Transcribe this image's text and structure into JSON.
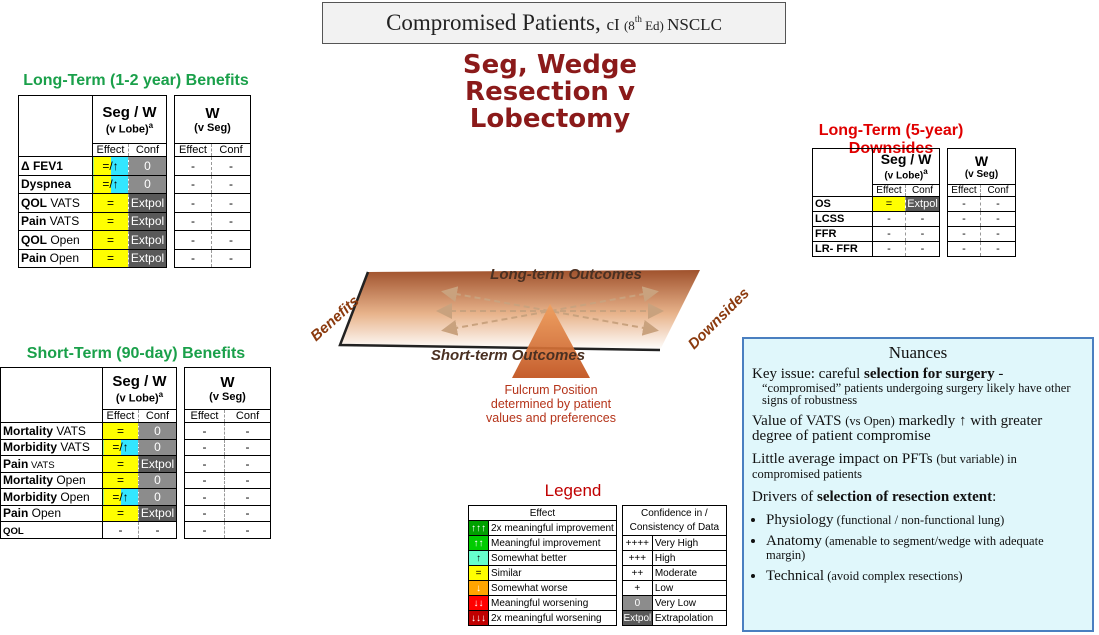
{
  "header": {
    "title_runs": [
      {
        "text": "Compromised Patients, ",
        "style": "large"
      },
      {
        "text": "cI ",
        "style": "medium"
      },
      {
        "text": "(8",
        "style": "small"
      },
      {
        "text": "th",
        "style": "sup"
      },
      {
        "text": " Ed) ",
        "style": "small"
      },
      {
        "text": "NSCLC",
        "style": "medium"
      }
    ]
  },
  "center_title": [
    "Seg, Wedge",
    "Resection v",
    "Lobectomy"
  ],
  "long_term_benefits": {
    "title": "Long-Term (1-2 year) Benefits",
    "groups": [
      {
        "label": "Seg / W",
        "sub": "(v Lobe)",
        "sup": "a"
      },
      {
        "label": "W",
        "sub": "(v Seg)"
      }
    ],
    "columns": [
      "Effect",
      "Conf",
      "Effect",
      "Conf"
    ],
    "rows": [
      {
        "label": [
          {
            "text": "Δ FEV1",
            "style": "bold"
          }
        ],
        "cells": [
          {
            "text": "=/↑",
            "bg": [
              "#ffff00",
              "#33e6ff"
            ]
          },
          {
            "text": "0",
            "bg": "#8c8c8c",
            "color": "#ffffff"
          },
          {
            "text": "-"
          },
          {
            "text": "-"
          }
        ]
      },
      {
        "label": [
          {
            "text": "Dyspnea",
            "style": "bold"
          }
        ],
        "cells": [
          {
            "text": "=/↑",
            "bg": [
              "#ffff00",
              "#33e6ff"
            ]
          },
          {
            "text": "0",
            "bg": "#8c8c8c",
            "color": "#ffffff"
          },
          {
            "text": "-"
          },
          {
            "text": "-"
          }
        ]
      },
      {
        "label": [
          {
            "text": "QOL",
            "style": "bold"
          },
          {
            "text": " VATS",
            "style": "normal"
          }
        ],
        "cells": [
          {
            "text": "=",
            "bg": "#ffff00"
          },
          {
            "text": "Extpol",
            "bg": "#595959",
            "color": "#ffffff"
          },
          {
            "text": "-"
          },
          {
            "text": "-"
          }
        ]
      },
      {
        "label": [
          {
            "text": "Pain",
            "style": "bold"
          },
          {
            "text": " VATS",
            "style": "normal"
          }
        ],
        "cells": [
          {
            "text": "=",
            "bg": "#ffff00"
          },
          {
            "text": "Extpol",
            "bg": "#595959",
            "color": "#ffffff"
          },
          {
            "text": "-"
          },
          {
            "text": "-"
          }
        ]
      },
      {
        "label": [
          {
            "text": "QOL",
            "style": "bold"
          },
          {
            "text": " Open",
            "style": "normal"
          }
        ],
        "cells": [
          {
            "text": "=",
            "bg": "#ffff00"
          },
          {
            "text": "Extpol",
            "bg": "#595959",
            "color": "#ffffff"
          },
          {
            "text": "-"
          },
          {
            "text": "-"
          }
        ]
      },
      {
        "label": [
          {
            "text": "Pain",
            "style": "bold"
          },
          {
            "text": " Open",
            "style": "normal"
          }
        ],
        "cells": [
          {
            "text": "=",
            "bg": "#ffff00"
          },
          {
            "text": "Extpol",
            "bg": "#595959",
            "color": "#ffffff"
          },
          {
            "text": "-"
          },
          {
            "text": "-"
          }
        ]
      }
    ]
  },
  "short_term_benefits": {
    "title": "Short-Term (90-day) Benefits",
    "groups": [
      {
        "label": "Seg / W",
        "sub": "(v Lobe)",
        "sup": "a"
      },
      {
        "label": "W",
        "sub": "(v Seg)"
      }
    ],
    "columns": [
      "Effect",
      "Conf",
      "Effect",
      "Conf"
    ],
    "rows": [
      {
        "label": [
          {
            "text": "Mortality",
            "style": "bold"
          },
          {
            "text": " VATS",
            "style": "normal"
          }
        ],
        "cells": [
          {
            "text": "=",
            "bg": "#ffff00"
          },
          {
            "text": "0",
            "bg": "#8c8c8c",
            "color": "#ffffff"
          },
          {
            "text": "-"
          },
          {
            "text": "-"
          }
        ]
      },
      {
        "label": [
          {
            "text": "Morbidity",
            "style": "bold"
          },
          {
            "text": " VATS",
            "style": "normal"
          }
        ],
        "cells": [
          {
            "text": "=/↑",
            "bg": [
              "#ffff00",
              "#33e6ff"
            ]
          },
          {
            "text": "0",
            "bg": "#8c8c8c",
            "color": "#ffffff"
          },
          {
            "text": "-"
          },
          {
            "text": "-"
          }
        ]
      },
      {
        "label": [
          {
            "text": "Pain",
            "style": "bold"
          },
          {
            "text": " VATS",
            "style": "small"
          }
        ],
        "cells": [
          {
            "text": "=",
            "bg": "#ffff00"
          },
          {
            "text": "Extpol",
            "bg": "#595959",
            "color": "#ffffff"
          },
          {
            "text": "-"
          },
          {
            "text": "-"
          }
        ]
      },
      {
        "label": [
          {
            "text": "Mortality",
            "style": "bold"
          },
          {
            "text": " Open",
            "style": "normal"
          }
        ],
        "cells": [
          {
            "text": "=",
            "bg": "#ffff00"
          },
          {
            "text": "0",
            "bg": "#8c8c8c",
            "color": "#ffffff"
          },
          {
            "text": "-"
          },
          {
            "text": "-"
          }
        ]
      },
      {
        "label": [
          {
            "text": "Morbidity",
            "style": "bold"
          },
          {
            "text": " Open",
            "style": "normal"
          }
        ],
        "cells": [
          {
            "text": "=/↑",
            "bg": [
              "#ffff00",
              "#33e6ff"
            ]
          },
          {
            "text": "0",
            "bg": "#8c8c8c",
            "color": "#ffffff"
          },
          {
            "text": "-"
          },
          {
            "text": "-"
          }
        ]
      },
      {
        "label": [
          {
            "text": "Pain",
            "style": "bold"
          },
          {
            "text": " Open",
            "style": "normal"
          }
        ],
        "cells": [
          {
            "text": "=",
            "bg": "#ffff00"
          },
          {
            "text": "Extpol",
            "bg": "#595959",
            "color": "#ffffff"
          },
          {
            "text": "-"
          },
          {
            "text": "-"
          }
        ]
      },
      {
        "label": [
          {
            "text": "QOL",
            "style": "boldsmall"
          }
        ],
        "cells": [
          {
            "text": "-"
          },
          {
            "text": "-"
          },
          {
            "text": "-"
          },
          {
            "text": "-"
          }
        ]
      }
    ]
  },
  "long_term_downsides": {
    "title": "Long-Term (5-year) Downsides",
    "groups": [
      {
        "label": "Seg / W",
        "sub": "(v Lobe)",
        "sup": "a"
      },
      {
        "label": "W",
        "sub": "(v Seg)"
      }
    ],
    "columns": [
      "Effect",
      "Conf",
      "Effect",
      "Conf"
    ],
    "rows": [
      {
        "label": [
          {
            "text": "OS",
            "style": "bold"
          }
        ],
        "cells": [
          {
            "text": "=",
            "bg": "#ffff00"
          },
          {
            "text": "Extpol",
            "bg": "#595959",
            "color": "#ffffff"
          },
          {
            "text": "-"
          },
          {
            "text": "-"
          }
        ]
      },
      {
        "label": [
          {
            "text": "LCSS",
            "style": "bold"
          }
        ],
        "cells": [
          {
            "text": "-"
          },
          {
            "text": "-"
          },
          {
            "text": "-"
          },
          {
            "text": "-"
          }
        ]
      },
      {
        "label": [
          {
            "text": "FFR",
            "style": "bold"
          }
        ],
        "cells": [
          {
            "text": "-"
          },
          {
            "text": "-"
          },
          {
            "text": "-"
          },
          {
            "text": "-"
          }
        ]
      },
      {
        "label": [
          {
            "text": "LR- FFR",
            "style": "bold"
          }
        ],
        "cells": [
          {
            "text": "-"
          },
          {
            "text": "-"
          },
          {
            "text": "-"
          },
          {
            "text": "-"
          }
        ]
      }
    ]
  },
  "diagram": {
    "top_label": "Long-term Outcomes",
    "bottom_label": "Short-term Outcomes",
    "left_label": "Benefits",
    "right_label": "Downsides",
    "fulcrum_text": [
      "Fulcrum Position",
      "determined by patient",
      "values and preferences"
    ]
  },
  "legend": {
    "title": "Legend",
    "effect": {
      "header": "Effect",
      "rows": [
        {
          "symbol": "↑↑↑",
          "label": "2x meaningful improvement",
          "bg": "#00a000",
          "color": "#ffffff"
        },
        {
          "symbol": "↑↑",
          "label": "Meaningful improvement",
          "bg": "#00cc00",
          "color": "#ffffff"
        },
        {
          "symbol": "↑",
          "label": "Somewhat better",
          "bg": "#66ffcc",
          "color": "#000000"
        },
        {
          "symbol": "=",
          "label": "Similar",
          "bg": "#ffff00",
          "color": "#000000"
        },
        {
          "symbol": "↓",
          "label": "Somewhat worse",
          "bg": "#ffa500",
          "color": "#ffffff"
        },
        {
          "symbol": "↓↓",
          "label": "Meaningful worsening",
          "bg": "#ff0000",
          "color": "#ffffff"
        },
        {
          "symbol": "↓↓↓",
          "label": "2x meaningful worsening",
          "bg": "#c00000",
          "color": "#ffffff"
        }
      ]
    },
    "confidence": {
      "header": "Confidence in / Consistency of Data",
      "rows": [
        {
          "symbol": "++++",
          "label": "Very High"
        },
        {
          "symbol": "+++",
          "label": "High"
        },
        {
          "symbol": "++",
          "label": "Moderate"
        },
        {
          "symbol": "+",
          "label": "Low"
        },
        {
          "symbol": "0",
          "label": "Very Low",
          "bg": "#8c8c8c",
          "color": "#ffffff"
        },
        {
          "symbol": "Extpol",
          "label": "Extrapolation",
          "bg": "#595959",
          "color": "#ffffff"
        }
      ]
    }
  },
  "nuances": {
    "title": "Nuances",
    "paragraphs": [
      [
        {
          "text": "Key issue: careful ",
          "style": "normal"
        },
        {
          "text": "selection for surgery",
          "style": "bold"
        },
        {
          "text": " -",
          "style": "normal"
        },
        {
          "text": "“compromised” patients undergoing surgery likely have other signs of robustness",
          "style": "smallblock"
        }
      ],
      [
        {
          "text": "Value of VATS ",
          "style": "normal"
        },
        {
          "text": "(vs Open)",
          "style": "small"
        },
        {
          "text": " markedly ↑ with greater degree of patient compromise",
          "style": "normal"
        }
      ],
      [
        {
          "text": "Little average impact on PFTs ",
          "style": "normal"
        },
        {
          "text": "(but variable) in compromised patients",
          "style": "small"
        }
      ],
      [
        {
          "text": "Drivers of ",
          "style": "normal"
        },
        {
          "text": "selection of resection extent",
          "style": "bold"
        },
        {
          "text": ":",
          "style": "normal"
        }
      ]
    ],
    "bullets": [
      [
        {
          "text": "Physiology",
          "style": "normal"
        },
        {
          "text": " (functional / non-functional lung)",
          "style": "small"
        }
      ],
      [
        {
          "text": "Anatomy",
          "style": "normal"
        },
        {
          "text": " (amenable to segment/wedge with adequate margin)",
          "style": "small"
        }
      ],
      [
        {
          "text": "Technical",
          "style": "normal"
        },
        {
          "text": " (avoid complex resections)",
          "style": "small"
        }
      ]
    ]
  }
}
